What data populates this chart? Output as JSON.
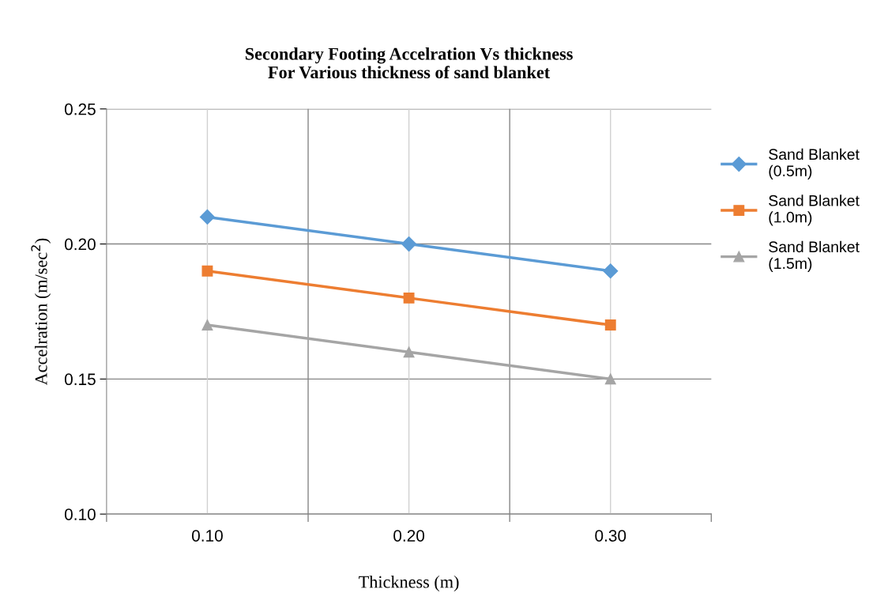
{
  "chart_data": {
    "type": "line",
    "title": "Secondary Footing Accelration Vs thickness\nFor Various thickness of sand blanket",
    "xlabel": "Thickness (m)",
    "ylabel": "Accelration (m/sec$^{2}$)",
    "categories": [
      "0.10",
      "0.20",
      "0.30"
    ],
    "series": [
      {
        "name": "Sand Blanket (0.5m)",
        "color": "#5b9bd5",
        "marker": "diamond",
        "values": [
          0.21,
          0.2,
          0.19
        ]
      },
      {
        "name": "Sand Blanket (1.0m)",
        "color": "#ed7d31",
        "marker": "square",
        "values": [
          0.19,
          0.18,
          0.17
        ]
      },
      {
        "name": "Sand Blanket (1.5m)",
        "color": "#a5a5a5",
        "marker": "triangle",
        "values": [
          0.17,
          0.16,
          0.15
        ]
      }
    ],
    "ylim": [
      0.1,
      0.25
    ],
    "yticks": [
      {
        "value": 0.1,
        "label": "0.10"
      },
      {
        "value": 0.15,
        "label": "0.15"
      },
      {
        "value": 0.2,
        "label": "0.20"
      },
      {
        "value": 0.25,
        "label": "0.25"
      }
    ],
    "grid": true,
    "legend": "right",
    "line_style": "solid"
  }
}
